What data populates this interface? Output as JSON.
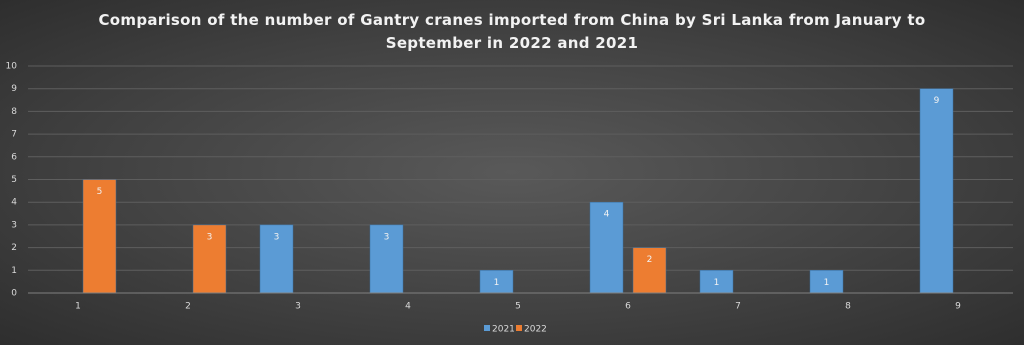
{
  "chart_data": {
    "type": "bar",
    "title": "Comparison of the number of Gantry cranes imported from China by Sri Lanka from January to September in 2022 and 2021",
    "categories": [
      "1",
      "2",
      "3",
      "4",
      "5",
      "6",
      "7",
      "8",
      "9"
    ],
    "series": [
      {
        "name": "2021",
        "color": "#5b9bd5",
        "values": [
          null,
          null,
          3,
          3,
          1,
          4,
          1,
          1,
          9
        ]
      },
      {
        "name": "2022",
        "color": "#ed7d31",
        "values": [
          5,
          3,
          null,
          null,
          null,
          2,
          null,
          null,
          null
        ]
      }
    ],
    "ylim": [
      0,
      10
    ],
    "yticks": [
      0,
      1,
      2,
      3,
      4,
      5,
      6,
      7,
      8,
      9,
      10
    ],
    "grid": true,
    "legend": "bottom"
  }
}
